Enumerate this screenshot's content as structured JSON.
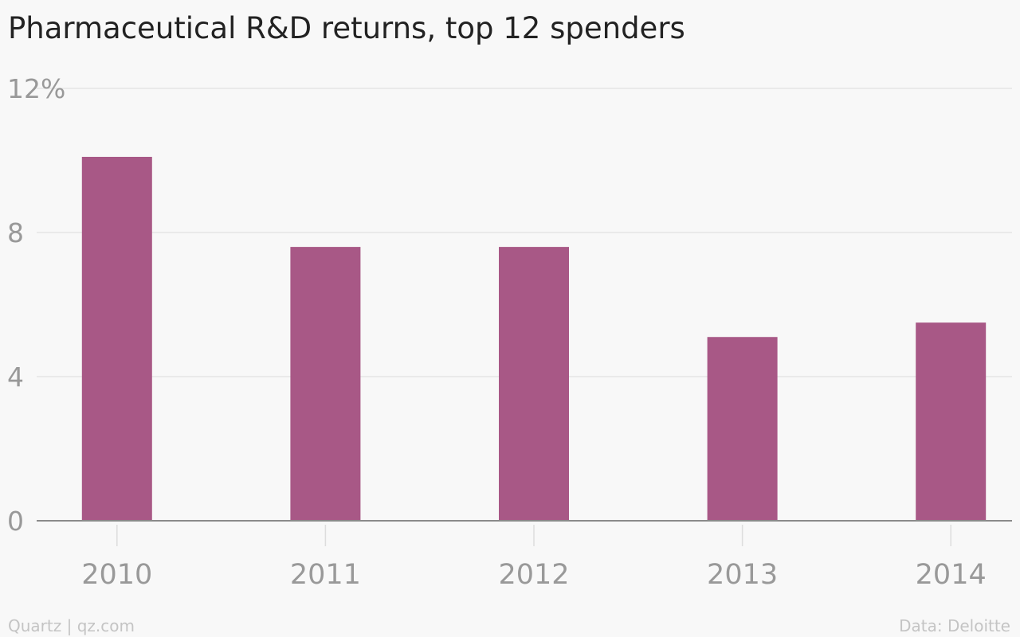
{
  "chart_data": {
    "type": "bar",
    "title": "Pharmaceutical R&D returns, top 12 spenders",
    "categories": [
      "2010",
      "2011",
      "2012",
      "2013",
      "2014"
    ],
    "values": [
      10.1,
      7.6,
      7.6,
      5.1,
      5.5
    ],
    "ylim": [
      0,
      12
    ],
    "yticks": [
      0,
      4,
      8,
      12
    ],
    "ytick_labels": [
      "0",
      "4",
      "8",
      "12%"
    ],
    "xlabel": "",
    "ylabel": "",
    "grid": true,
    "colors": {
      "bar": "#a85886",
      "grid": "#e6e6e6",
      "axis": "#8a8a8a",
      "tick_text": "#999999"
    }
  },
  "footer": {
    "source_left": "Quartz | qz.com",
    "source_right": "Data: Deloitte"
  }
}
